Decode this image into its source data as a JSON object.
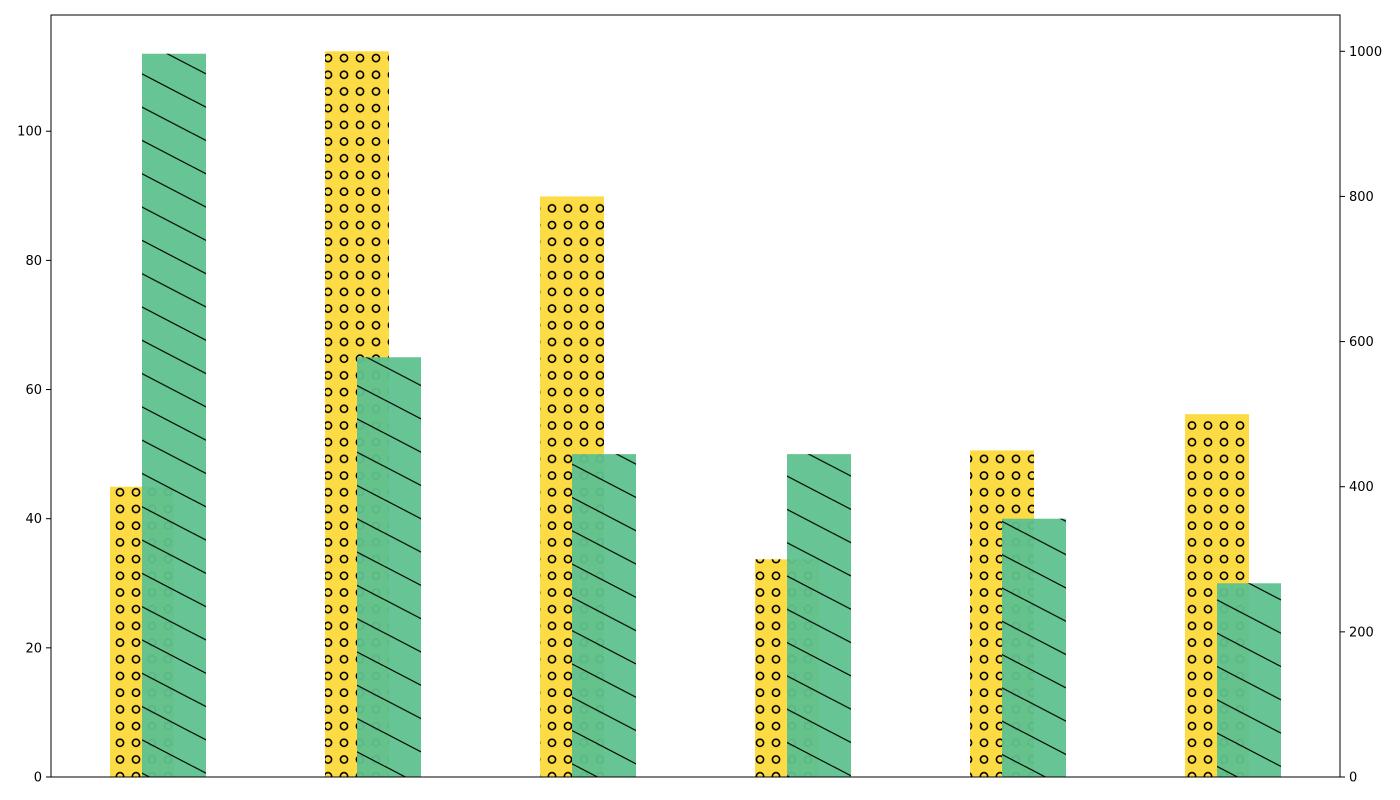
{
  "chart_data": {
    "type": "bar",
    "title": "",
    "xlabel": "",
    "ylabel_left": "",
    "ylabel_right": "",
    "grid": false,
    "legend": "none",
    "categories": [
      "",
      "",
      "",
      "",
      "",
      ""
    ],
    "left_axis": {
      "ylim": [
        0,
        118
      ],
      "ticks": [
        0,
        20,
        40,
        60,
        80,
        100
      ],
      "tick_labels": [
        "0",
        "20",
        "40",
        "60",
        "80",
        "100"
      ]
    },
    "right_axis": {
      "ylim": [
        0,
        1050
      ],
      "ticks": [
        0,
        200,
        400,
        600,
        800,
        1000
      ],
      "tick_labels": [
        "0",
        "200",
        "400",
        "600",
        "800",
        "1000"
      ]
    },
    "series": [
      {
        "axis": "right",
        "color": "#fdd835",
        "pattern": "circles",
        "values": [
          400,
          1000,
          800,
          300,
          450,
          500
        ]
      },
      {
        "axis": "left",
        "color": "#5ec18f",
        "pattern": "diagonal-hatch",
        "values": [
          112,
          65,
          50,
          50,
          40,
          30
        ]
      }
    ]
  }
}
